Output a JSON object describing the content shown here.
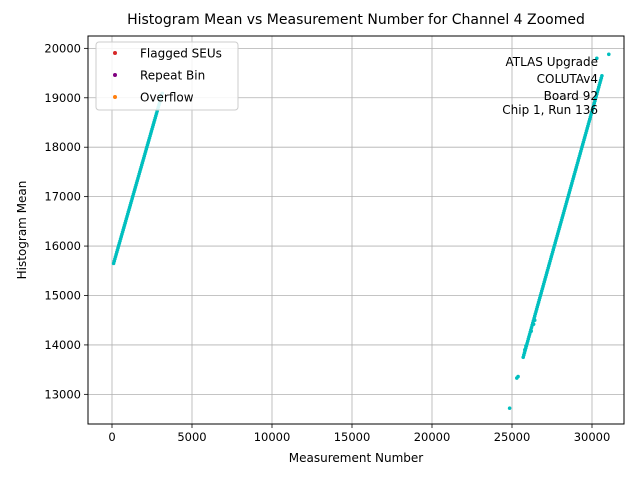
{
  "colors": {
    "data": "#00bfbf",
    "grid": "#b0b0b0",
    "flagged": "#d62728",
    "repeat": "#800080",
    "overflow": "#ff7f0e",
    "legend_border": "#cccccc"
  },
  "chart_data": {
    "type": "scatter",
    "title": "Histogram Mean vs Measurement Number for Channel 4 Zoomed",
    "xlabel": "Measurement Number",
    "ylabel": "Histogram Mean",
    "xlim": [
      -1500,
      32000
    ],
    "ylim": [
      12400,
      20250
    ],
    "xticks": [
      0,
      5000,
      10000,
      15000,
      20000,
      25000,
      30000
    ],
    "xtick_labels": [
      "0",
      "5000",
      "10000",
      "15000",
      "20000",
      "25000",
      "30000"
    ],
    "yticks": [
      13000,
      14000,
      15000,
      16000,
      17000,
      18000,
      19000,
      20000
    ],
    "ytick_labels": [
      "13000",
      "14000",
      "15000",
      "16000",
      "17000",
      "18000",
      "19000",
      "20000"
    ],
    "grid": true,
    "legend_position": "upper-left",
    "legend": [
      {
        "label": "Flagged SEUs",
        "color_key": "flagged"
      },
      {
        "label": "Repeat Bin",
        "color_key": "repeat"
      },
      {
        "label": "Overflow",
        "color_key": "overflow"
      }
    ],
    "annotation": {
      "position": "upper-right",
      "lines": [
        "ATLAS Upgrade",
        "COLUTAv4",
        "Board 92",
        "Chip 1, Run 136"
      ]
    },
    "series": [
      {
        "name": "Histogram Mean",
        "segments": [
          {
            "x_start": 100,
            "x_end": 3150,
            "y_start": 15650,
            "y_end": 19100,
            "step": 40
          },
          {
            "x_start": 25700,
            "x_end": 30650,
            "y_start": 13750,
            "y_end": 19480,
            "step": 40
          }
        ],
        "points": [
          {
            "x": 24850,
            "y": 12720
          },
          {
            "x": 25300,
            "y": 13330
          },
          {
            "x": 25380,
            "y": 13360
          },
          {
            "x": 25800,
            "y": 13900
          },
          {
            "x": 25870,
            "y": 13980
          },
          {
            "x": 26200,
            "y": 14280
          },
          {
            "x": 26350,
            "y": 14420
          },
          {
            "x": 26420,
            "y": 14500
          },
          {
            "x": 30300,
            "y": 19800
          },
          {
            "x": 31050,
            "y": 19880
          }
        ]
      }
    ]
  }
}
